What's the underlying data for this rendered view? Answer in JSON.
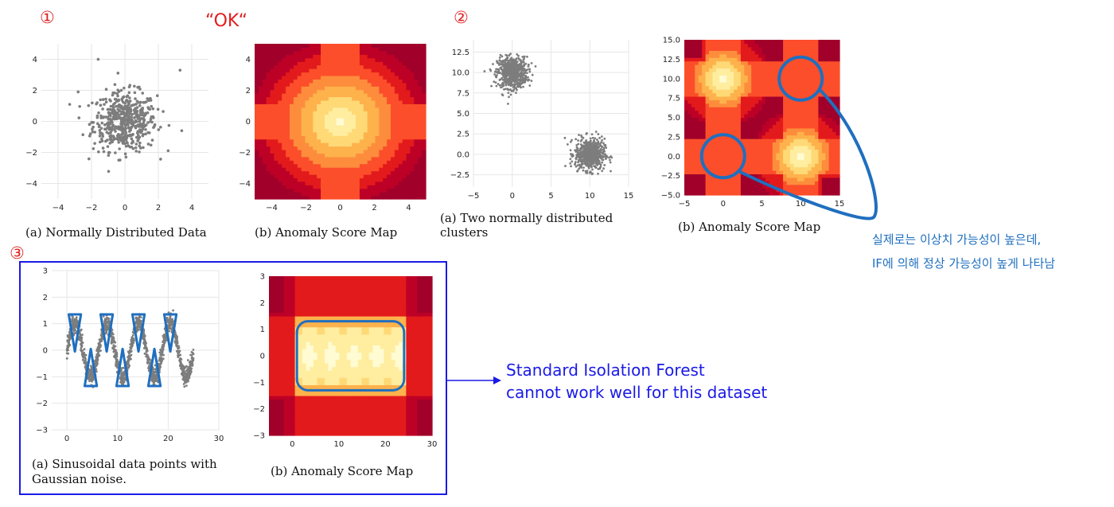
{
  "labels": {
    "num1": "①",
    "num2": "②",
    "num3": "③",
    "ok": "“OK“",
    "korean_line1": "실제로는 이상치 가능성이 높은데,",
    "korean_line2": "IF에 의해 정상 가능성이 높게 나타남",
    "note_line1": "Standard Isolation Forest",
    "note_line2": "cannot work well for this dataset"
  },
  "colors": {
    "accent_red": "#e02020",
    "annotation_blue": "#1f6fbf",
    "box_blue": "#1a1ae6",
    "point_gray": "#808080"
  },
  "chart_data": [
    {
      "id": "1a",
      "type": "scatter",
      "caption": "(a) Normally Distributed Data",
      "distribution": "single gaussian cluster centered at (0,0), std≈1",
      "outliers": [
        [
          -1.6,
          4.0
        ],
        [
          3.3,
          3.3
        ],
        [
          -2.8,
          1.9
        ],
        [
          3.4,
          -0.6
        ]
      ],
      "xlim": [
        -5,
        5
      ],
      "ylim": [
        -5,
        5
      ],
      "xticks": [
        "−4",
        "−2",
        "0",
        "2",
        "4"
      ],
      "yticks": [
        "4",
        "2",
        "0",
        "−2",
        "−4"
      ],
      "grid": true
    },
    {
      "id": "1b",
      "type": "heatmap",
      "caption": "(b) Anomaly Score Map",
      "description": "single normal region centered at (0,0)",
      "xlim": [
        -5,
        5
      ],
      "ylim": [
        -5,
        5
      ],
      "xticks": [
        "−4",
        "−2",
        "0",
        "2",
        "4"
      ],
      "yticks": [
        "4",
        "2",
        "0",
        "−2",
        "−4"
      ]
    },
    {
      "id": "2a",
      "type": "scatter",
      "caption_line1": "(a)   Two   normally   distributed",
      "caption_line2": "clusters",
      "clusters": [
        [
          0,
          10
        ],
        [
          10,
          0
        ]
      ],
      "xlim": [
        -5,
        15
      ],
      "ylim": [
        -5,
        15
      ],
      "xticks": [
        "−5",
        "0",
        "5",
        "10",
        "15"
      ],
      "yticks": [
        "12.5",
        "10.0",
        "7.5",
        "5.0",
        "2.5",
        "0.0",
        "−2.5"
      ],
      "grid": true
    },
    {
      "id": "2b",
      "type": "heatmap",
      "caption": "(b) Anomaly Score Map",
      "description": "two normal regions at (0,10) and (10,0); ghost regions at (10,10) and (0,0)",
      "xlim": [
        -5,
        15
      ],
      "ylim": [
        -5,
        15
      ],
      "xticks": [
        "−5",
        "0",
        "5",
        "10",
        "15"
      ],
      "yticks": [
        "15.0",
        "12.5",
        "10.0",
        "7.5",
        "5.0",
        "2.5",
        "0.0",
        "−2.5",
        "−5.0"
      ]
    },
    {
      "id": "3a",
      "type": "scatter",
      "caption_line1": "(a) Sinusoidal data points with",
      "caption_line2": "Gaussian noise.",
      "distribution": "sine wave y = sin(x) + noise, x from 0 to 25",
      "xlim": [
        -3,
        30
      ],
      "ylim": [
        -3,
        3
      ],
      "xticks": [
        "0",
        "10",
        "20",
        "30"
      ],
      "yticks": [
        "3",
        "2",
        "1",
        "0",
        "−1",
        "−2",
        "−3"
      ],
      "grid": true
    },
    {
      "id": "3b",
      "type": "heatmap",
      "caption": "(b) Anomaly Score Map",
      "description": "broad normal rectangle x≈0–25, y≈−1..1",
      "xlim": [
        -5,
        30
      ],
      "ylim": [
        -3,
        3
      ],
      "xticks": [
        "0",
        "10",
        "20",
        "30"
      ],
      "yticks": [
        "3",
        "2",
        "1",
        "0",
        "−1",
        "−2",
        "−3"
      ]
    }
  ]
}
